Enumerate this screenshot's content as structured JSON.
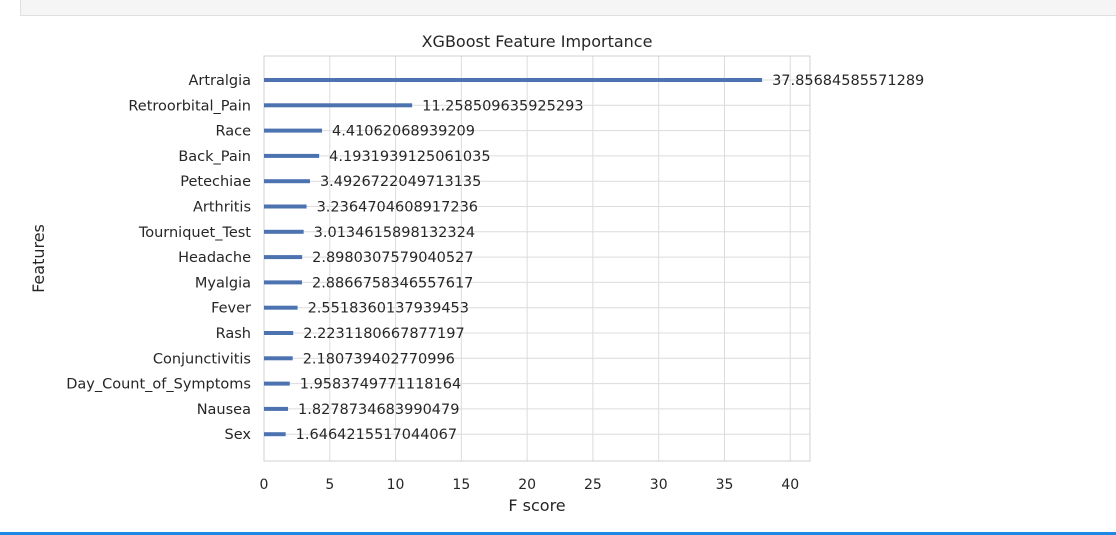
{
  "chart_data": {
    "type": "bar",
    "orientation": "horizontal",
    "title": "XGBoost Feature Importance",
    "xlabel": "F score",
    "ylabel": "Features",
    "xlim": [
      0,
      41.5
    ],
    "xticks": [
      0,
      5,
      10,
      15,
      20,
      25,
      30,
      35,
      40
    ],
    "grid": true,
    "colors": {
      "bar": "#4c72b0",
      "grid": "#dcdcdc",
      "text": "#262626"
    },
    "categories": [
      "Artralgia",
      "Retroorbital_Pain",
      "Race",
      "Back_Pain",
      "Petechiae",
      "Arthritis",
      "Tourniquet_Test",
      "Headache",
      "Myalgia",
      "Fever",
      "Rash",
      "Conjunctivitis",
      "Day_Count_of_Symptoms",
      "Nausea",
      "Sex"
    ],
    "values": [
      37.85684585571289,
      11.258509635925293,
      4.41062068939209,
      4.1931939125061035,
      3.4926722049713135,
      3.2364704608917236,
      3.0134615898132324,
      2.8980307579040527,
      2.8866758346557617,
      2.5518360137939453,
      2.2231180667877197,
      2.180739402770996,
      1.9583749771118164,
      1.8278734683990479,
      1.6464215517044067
    ],
    "data_labels": [
      "37.85684585571289",
      "11.258509635925293",
      "4.41062068939209",
      "4.1931939125061035",
      "3.4926722049713135",
      "3.2364704608917236",
      "3.0134615898132324",
      "2.8980307579040527",
      "2.8866758346557617",
      "2.5518360137939453",
      "2.2231180667877197",
      "2.180739402770996",
      "1.9583749771118164",
      "1.8278734683990479",
      "1.6464215517044067"
    ]
  }
}
